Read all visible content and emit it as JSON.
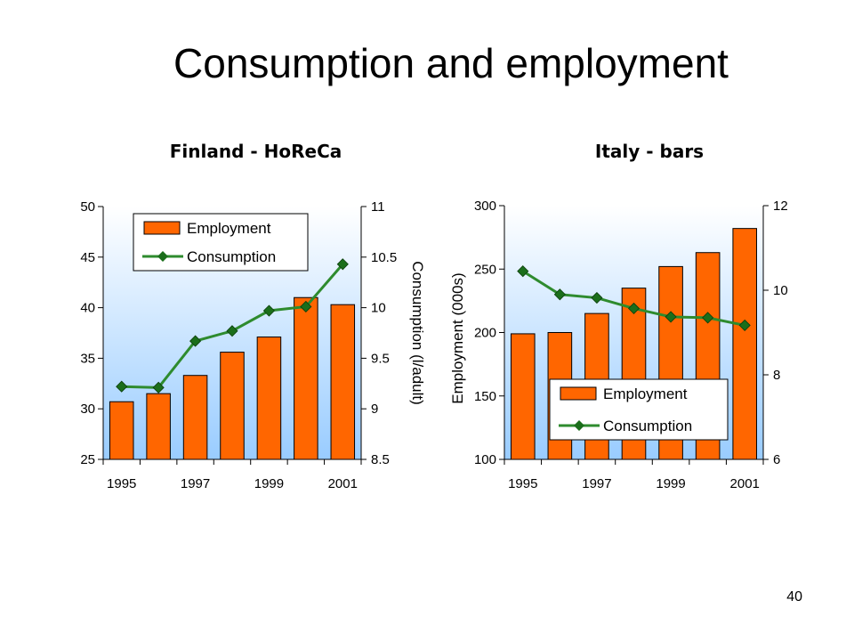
{
  "slide": {
    "title": "Consumption and employment",
    "page_number": "40"
  },
  "colors": {
    "bar": "#ff6600",
    "bar_stroke": "#000000",
    "line": "#2e8b2e",
    "marker": "#1b6e1b",
    "plot_top": "#ffffff",
    "plot_bottom": "#99ccff"
  },
  "chart_data": [
    {
      "type": "bar",
      "title": "Finland - HoReCa",
      "x": [
        1995,
        1996,
        1997,
        1998,
        1999,
        2000,
        2001
      ],
      "x_tick_labels": [
        "1995",
        "1997",
        "1999",
        "2001"
      ],
      "series": [
        {
          "name": "Employment",
          "type": "bar",
          "axis": "left",
          "values": [
            30.7,
            31.5,
            33.3,
            35.6,
            37.1,
            41.0,
            40.3
          ]
        },
        {
          "name": "Consumption",
          "type": "line",
          "axis": "right",
          "values": [
            9.22,
            9.21,
            9.67,
            9.77,
            9.97,
            10.01,
            10.43
          ]
        }
      ],
      "ylabel": "",
      "y2label": "Consumption (l/adult)",
      "ylim": [
        25,
        50
      ],
      "y_ticks": [
        25,
        30,
        35,
        40,
        45,
        50
      ],
      "y_tick_labels": [
        "25",
        "30",
        "35",
        "40",
        "45",
        "50"
      ],
      "y2lim": [
        8.5,
        11
      ],
      "y2_ticks": [
        8.5,
        9,
        9.5,
        10,
        10.5,
        11
      ],
      "y2_tick_labels": [
        "8.5",
        "9",
        "9.5",
        "10",
        "10.5",
        "11"
      ],
      "legend": "top-left"
    },
    {
      "type": "bar",
      "title": "Italy - bars",
      "x": [
        1995,
        1996,
        1997,
        1998,
        1999,
        2000,
        2001
      ],
      "x_tick_labels": [
        "1995",
        "1997",
        "1999",
        "2001"
      ],
      "series": [
        {
          "name": "Employment",
          "type": "bar",
          "axis": "left",
          "values": [
            199,
            200,
            215,
            235,
            252,
            263,
            282
          ]
        },
        {
          "name": "Consumption",
          "type": "line",
          "axis": "right",
          "values": [
            10.45,
            9.9,
            9.82,
            9.57,
            9.37,
            9.35,
            9.17
          ]
        }
      ],
      "ylabel": "Employment (000s)",
      "y2label": "",
      "ylim": [
        100,
        300
      ],
      "y_ticks": [
        100,
        150,
        200,
        250,
        300
      ],
      "y_tick_labels": [
        "100",
        "150",
        "200",
        "250",
        "300"
      ],
      "y2lim": [
        6,
        12
      ],
      "y2_ticks": [
        6,
        8,
        10,
        12
      ],
      "y2_tick_labels": [
        "6",
        "8",
        "10",
        "12"
      ],
      "legend": "bottom-center"
    }
  ]
}
